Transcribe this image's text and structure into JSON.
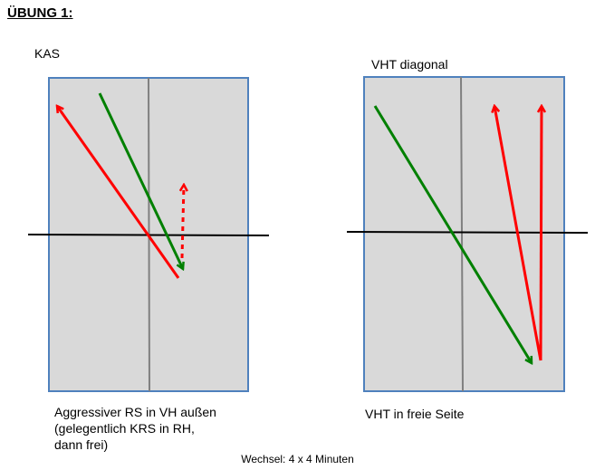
{
  "title": "ÜBUNG 1:",
  "drills": [
    {
      "label": "KAS",
      "caption": [
        "Aggressiver RS in VH außen",
        "(gelegentlich KRS in RH,",
        "dann frei)"
      ]
    },
    {
      "label": "VHT diagonal",
      "caption": [
        "VHT in freie Seite"
      ]
    }
  ],
  "footer": "Wechsel: 4 x 4 Minuten",
  "colors": {
    "court_fill": "#d9d9d9",
    "court_border": "#4f81bd",
    "center_line": "#808080",
    "net": "#000000",
    "red": "#ff0000",
    "green": "#008000"
  }
}
